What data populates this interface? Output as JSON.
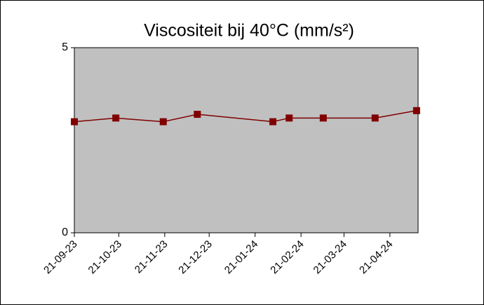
{
  "chart_data": {
    "type": "line",
    "title": "Viscositeit bij 40°C (mm/s²)",
    "x": [
      "2023-09-21",
      "2023-10-19",
      "2023-11-20",
      "2023-12-13",
      "2024-02-02",
      "2024-02-13",
      "2024-03-07",
      "2024-04-11",
      "2024-05-09"
    ],
    "series": [
      {
        "name": "Viscositeit",
        "color": "#800000",
        "values": [
          3.0,
          3.1,
          3.0,
          3.2,
          3.0,
          3.1,
          3.1,
          3.1,
          3.3
        ]
      }
    ],
    "xlim": [
      "2023-09-21",
      "2024-05-10"
    ],
    "xticks": [
      {
        "value": "2023-09-21",
        "label": "21-09-23"
      },
      {
        "value": "2023-10-21",
        "label": "21-10-23"
      },
      {
        "value": "2023-11-21",
        "label": "21-11-23"
      },
      {
        "value": "2023-12-21",
        "label": "21-12-23"
      },
      {
        "value": "2024-01-21",
        "label": "21-01-24"
      },
      {
        "value": "2024-02-21",
        "label": "21-02-24"
      },
      {
        "value": "2024-03-21",
        "label": "21-03-24"
      },
      {
        "value": "2024-04-21",
        "label": "21-04-24"
      }
    ],
    "ylim": [
      0,
      5
    ],
    "yticks": [
      0,
      5
    ],
    "plot_background": "#c0c0c0"
  }
}
